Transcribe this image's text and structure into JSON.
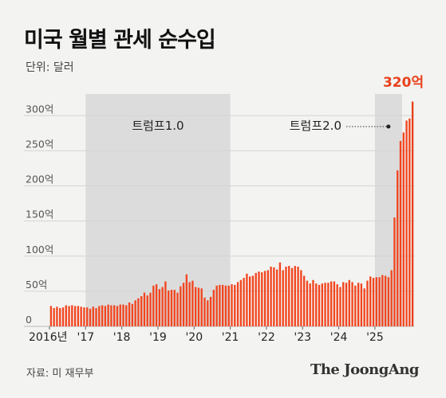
{
  "title": "미국 월별 관세 순수입",
  "unit_label": "단위: 달러",
  "source_label": "자료: 미 재무부",
  "brand": "The JoongAng",
  "colors": {
    "bar": "#f2451f",
    "peak": "#e8401c",
    "shade": "#dcdcdc",
    "grid": "#d4d4d4",
    "background": "#f3f3f1"
  },
  "chart_data": {
    "type": "bar",
    "y_unit": "억 달러",
    "ylim": [
      0,
      320
    ],
    "yticks": [
      0,
      50,
      100,
      150,
      200,
      250,
      300
    ],
    "ytick_labels": [
      "0",
      "50억",
      "100억",
      "150억",
      "200억",
      "250억",
      "300억"
    ],
    "x_start": "2016-01",
    "xtick_labels": [
      {
        "label": "2016년",
        "month": "2016-01"
      },
      {
        "label": "'17",
        "month": "2017-01"
      },
      {
        "label": "'18",
        "month": "2018-01"
      },
      {
        "label": "'19",
        "month": "2019-01"
      },
      {
        "label": "'20",
        "month": "2020-01"
      },
      {
        "label": "'21",
        "month": "2021-01"
      },
      {
        "label": "'22",
        "month": "2022-01"
      },
      {
        "label": "'23",
        "month": "2023-01"
      },
      {
        "label": "'24",
        "month": "2024-01"
      },
      {
        "label": "'25",
        "month": "2025-01"
      }
    ],
    "shaded_periods": [
      {
        "label": "트럼프1.0",
        "start": "2017-01",
        "end": "2021-01"
      },
      {
        "label": "트럼프2.0",
        "start": "2025-01",
        "end": "2025-10"
      }
    ],
    "peak_label": "320억",
    "values": [
      29,
      26,
      28,
      26,
      27,
      30,
      29,
      30,
      29,
      29,
      28,
      27,
      27,
      25,
      28,
      26,
      29,
      30,
      29,
      31,
      30,
      30,
      29,
      31,
      31,
      30,
      34,
      32,
      37,
      40,
      43,
      48,
      44,
      48,
      58,
      60,
      53,
      56,
      64,
      51,
      52,
      52,
      48,
      57,
      62,
      74,
      63,
      65,
      56,
      55,
      54,
      41,
      37,
      42,
      52,
      58,
      59,
      59,
      58,
      58,
      60,
      59,
      63,
      66,
      69,
      75,
      71,
      72,
      76,
      78,
      77,
      79,
      80,
      85,
      84,
      81,
      91,
      80,
      85,
      86,
      83,
      86,
      85,
      80,
      72,
      65,
      61,
      66,
      61,
      59,
      61,
      62,
      62,
      64,
      64,
      60,
      56,
      63,
      62,
      66,
      63,
      58,
      62,
      61,
      54,
      65,
      71,
      69,
      70,
      70,
      73,
      72,
      70,
      80,
      155,
      222,
      264,
      276,
      293,
      296,
      320
    ]
  }
}
